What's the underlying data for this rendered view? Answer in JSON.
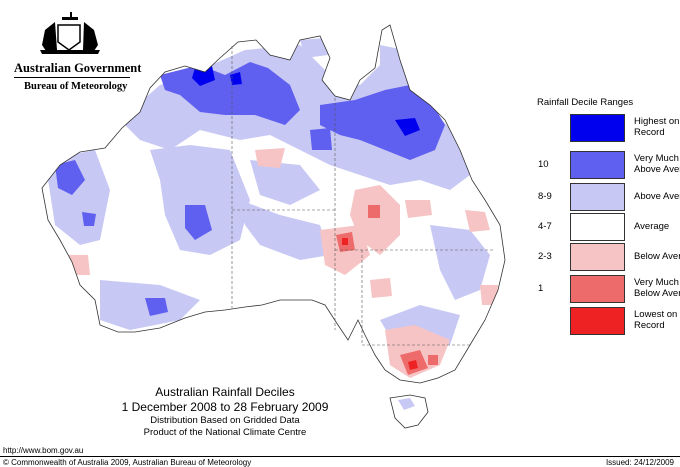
{
  "header": {
    "government": "Australian Government",
    "bureau": "Bureau of Meteorology"
  },
  "legend": {
    "title": "Rainfall Decile Ranges",
    "items": [
      {
        "code": "",
        "label": "Highest on Record",
        "color": "#0000ee"
      },
      {
        "code": "10",
        "label": "Very Much Above Average",
        "color": "#5f5ff0"
      },
      {
        "code": "8-9",
        "label": "Above Average",
        "color": "#c8c8f5"
      },
      {
        "code": "4-7",
        "label": "Average",
        "color": "#ffffff"
      },
      {
        "code": "2-3",
        "label": "Below Average",
        "color": "#f6c4c4"
      },
      {
        "code": "1",
        "label": "Very Much Below Average",
        "color": "#ee6b6b"
      },
      {
        "code": "",
        "label": "Lowest on Record",
        "color": "#ee2222"
      }
    ]
  },
  "caption": {
    "title": "Australian Rainfall Deciles",
    "dates": "1 December 2008 to 28 February 2009",
    "line3": "Distribution Based on Gridded Data",
    "line4": "Product of the National Climate Centre"
  },
  "footer": {
    "url": "http://www.bom.gov.au",
    "copyright": "© Commonwealth of Australia 2009, Australian Bureau of Meteorology",
    "issued": "Issued: 24/12/2009"
  }
}
